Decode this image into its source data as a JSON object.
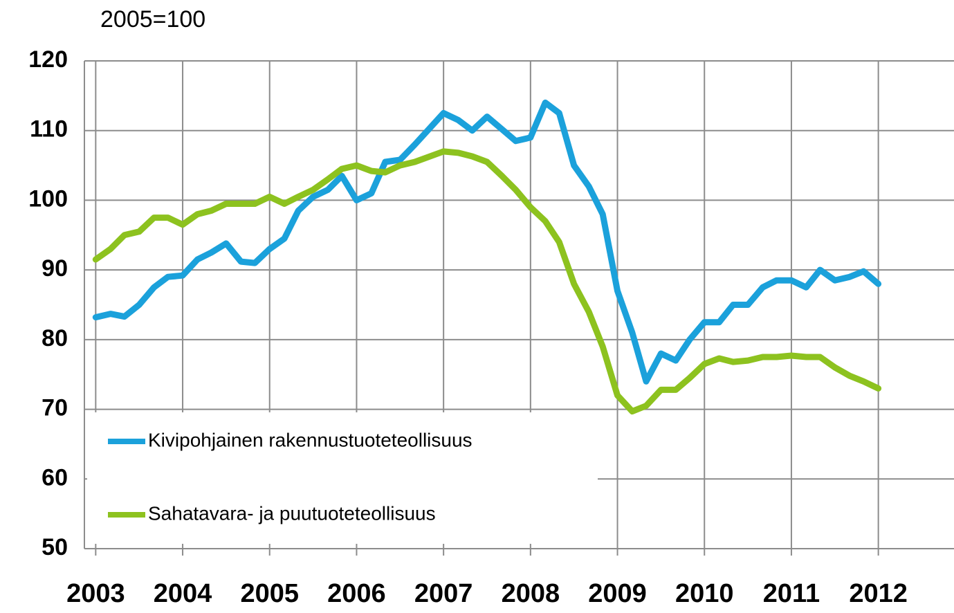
{
  "chart_data": {
    "type": "line",
    "y_label": "2005=100",
    "x": [
      2003.0,
      2003.17,
      2003.33,
      2003.5,
      2003.67,
      2003.83,
      2004.0,
      2004.17,
      2004.33,
      2004.5,
      2004.67,
      2004.83,
      2005.0,
      2005.17,
      2005.33,
      2005.5,
      2005.67,
      2005.83,
      2006.0,
      2006.17,
      2006.33,
      2006.5,
      2006.67,
      2007.0,
      2007.17,
      2007.33,
      2007.5,
      2007.67,
      2007.83,
      2008.0,
      2008.17,
      2008.33,
      2008.5,
      2008.67,
      2008.83,
      2009.0,
      2009.17,
      2009.33,
      2009.5,
      2009.67,
      2009.83,
      2010.0,
      2010.17,
      2010.33,
      2010.5,
      2010.67,
      2010.83,
      2011.0,
      2011.17,
      2011.33,
      2011.5,
      2011.67,
      2011.83,
      2012.0
    ],
    "series": [
      {
        "name": "Kivipohjainen rakennustuoteteollisuus",
        "color": "#1ba1db",
        "values": [
          83.2,
          83.7,
          83.3,
          85,
          87.5,
          89,
          89.2,
          91.5,
          92.5,
          93.8,
          91.2,
          91,
          93,
          94.5,
          98.5,
          100.5,
          101.5,
          103.5,
          100,
          101,
          105.5,
          105.8,
          108,
          112.5,
          111.5,
          110,
          112,
          110.2,
          108.5,
          109,
          114,
          112.5,
          105,
          102,
          98,
          87,
          81,
          74,
          78,
          77,
          80,
          82.5,
          82.5,
          85,
          85,
          87.5,
          88.5,
          88.5,
          87.5,
          90,
          88.5,
          89,
          89.8,
          88
        ]
      },
      {
        "name": "Sahatavara- ja puutuoteteollisuus",
        "color": "#8dc21f",
        "values": [
          91.5,
          93,
          95,
          95.5,
          97.5,
          97.5,
          96.5,
          98,
          98.5,
          99.5,
          99.5,
          99.5,
          100.5,
          99.5,
          100.5,
          101.5,
          103,
          104.5,
          105,
          104.2,
          104,
          105,
          105.5,
          107,
          106.8,
          106.3,
          105.5,
          103.5,
          101.5,
          99,
          97,
          94,
          88,
          84,
          79,
          72,
          69.7,
          70.5,
          72.8,
          72.8,
          74.5,
          76.5,
          77.3,
          76.8,
          77,
          77.5,
          77.5,
          77.7,
          77.5,
          77.5,
          76,
          74.8,
          74,
          73
        ]
      }
    ],
    "xlim": [
      2002.87,
      2012.87
    ],
    "xticks": [
      2003,
      2004,
      2005,
      2006,
      2007,
      2008,
      2009,
      2010,
      2011,
      2012
    ],
    "ylim": [
      50,
      120
    ],
    "yticks": [
      50,
      60,
      70,
      80,
      90,
      100,
      110,
      120
    ],
    "grid": true,
    "legend": "lower left"
  }
}
